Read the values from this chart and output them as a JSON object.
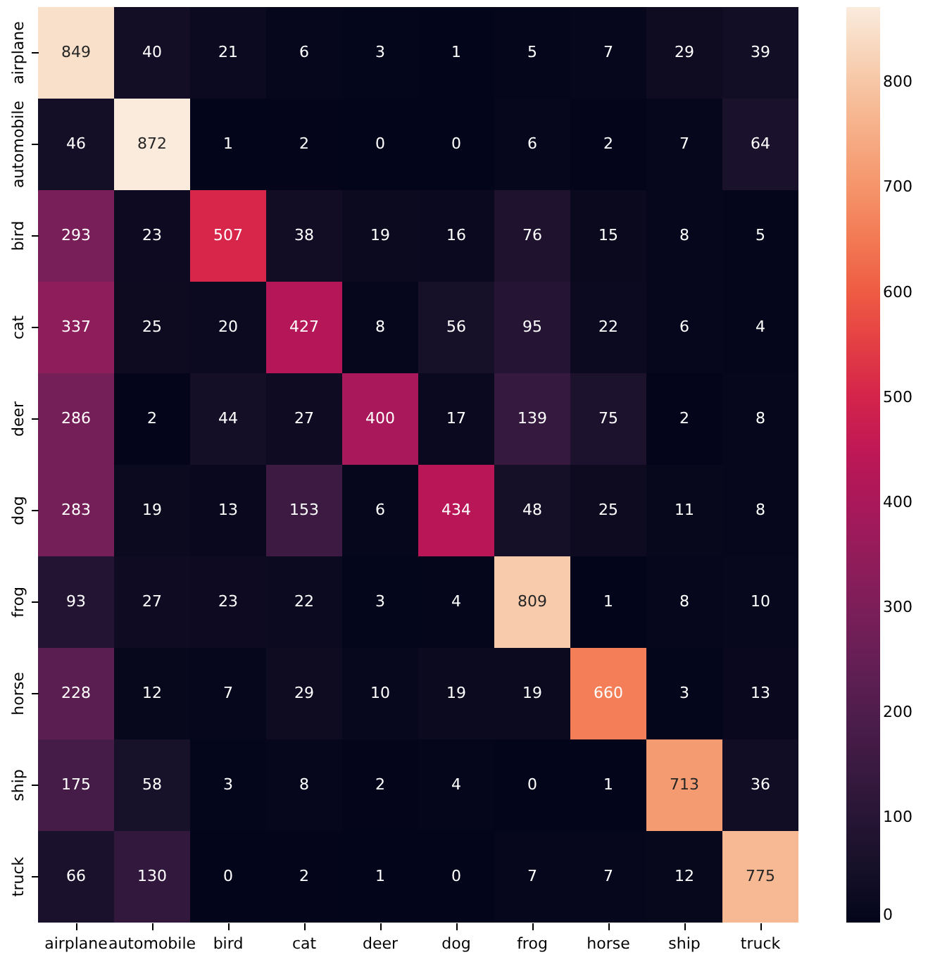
{
  "chart_data": {
    "type": "heatmap",
    "categories": [
      "airplane",
      "automobile",
      "bird",
      "cat",
      "deer",
      "dog",
      "frog",
      "horse",
      "ship",
      "truck"
    ],
    "y_categories": [
      "airplane",
      "automobile",
      "bird",
      "cat",
      "deer",
      "dog",
      "frog",
      "horse",
      "ship",
      "truck"
    ],
    "cells": [
      [
        849,
        40,
        21,
        6,
        3,
        1,
        5,
        7,
        29,
        39
      ],
      [
        46,
        872,
        1,
        2,
        0,
        0,
        6,
        2,
        7,
        64
      ],
      [
        293,
        23,
        507,
        38,
        19,
        16,
        76,
        15,
        8,
        5
      ],
      [
        337,
        25,
        20,
        427,
        8,
        56,
        95,
        22,
        6,
        4
      ],
      [
        286,
        2,
        44,
        27,
        400,
        17,
        139,
        75,
        2,
        8
      ],
      [
        283,
        19,
        13,
        153,
        6,
        434,
        48,
        25,
        11,
        8
      ],
      [
        93,
        27,
        23,
        22,
        3,
        4,
        809,
        1,
        8,
        10
      ],
      [
        228,
        12,
        7,
        29,
        10,
        19,
        19,
        660,
        3,
        13
      ],
      [
        175,
        58,
        3,
        8,
        2,
        4,
        0,
        1,
        713,
        36
      ],
      [
        66,
        130,
        0,
        2,
        1,
        0,
        7,
        7,
        12,
        775
      ]
    ],
    "data_labels": true,
    "clim": [
      0,
      872
    ],
    "cticks": [
      0,
      100,
      200,
      300,
      400,
      500,
      600,
      700,
      800
    ]
  }
}
